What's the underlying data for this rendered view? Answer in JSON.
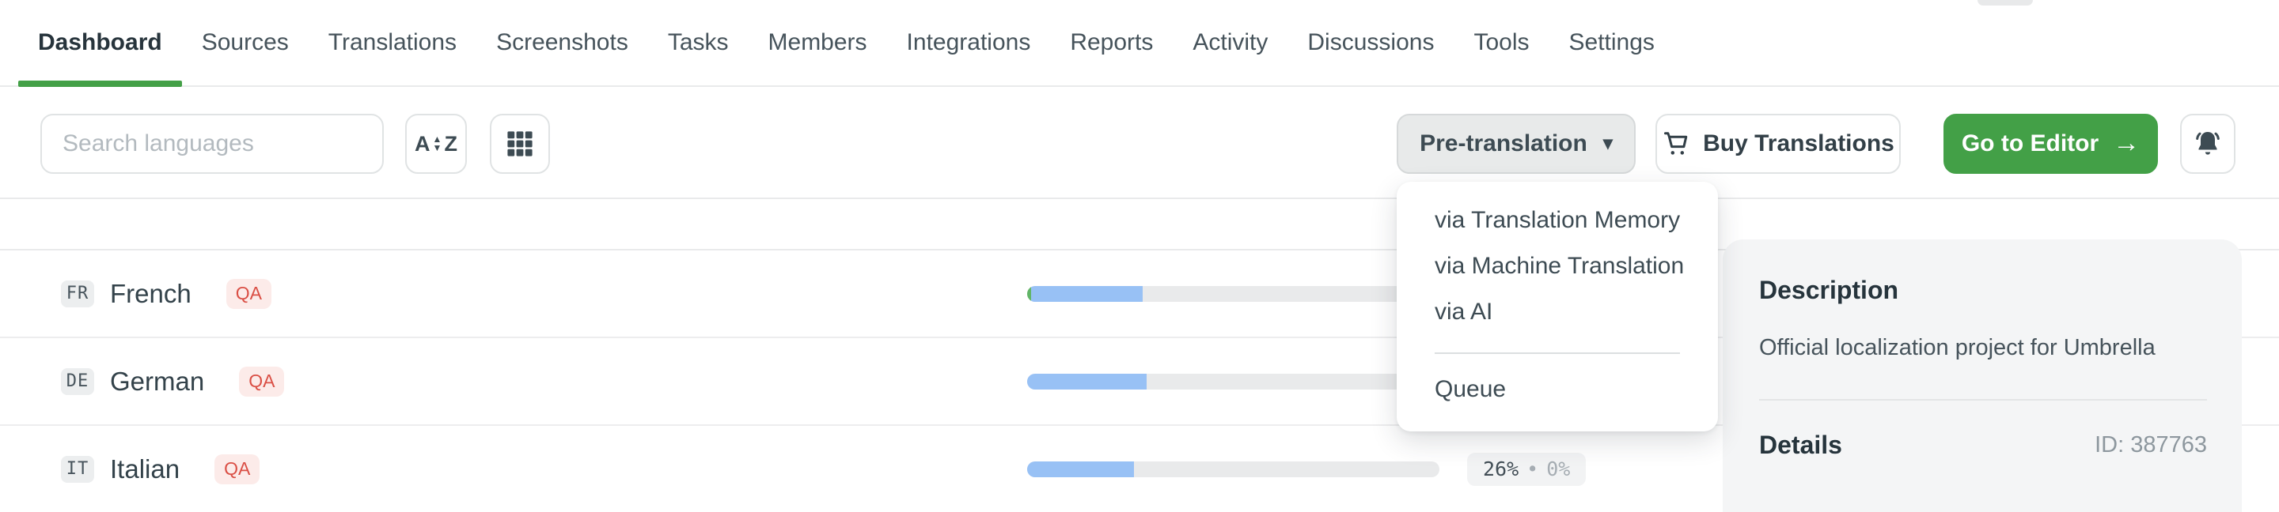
{
  "colors": {
    "accent_green": "#43a047",
    "bar_blue": "#98c1f5",
    "bar_green": "#61b567",
    "qa_red": "#da4f45"
  },
  "nav": {
    "items": [
      {
        "label": "Dashboard",
        "active": true
      },
      {
        "label": "Sources",
        "active": false
      },
      {
        "label": "Translations",
        "active": false
      },
      {
        "label": "Screenshots",
        "active": false
      },
      {
        "label": "Tasks",
        "active": false
      },
      {
        "label": "Members",
        "active": false
      },
      {
        "label": "Integrations",
        "active": false
      },
      {
        "label": "Reports",
        "active": false
      },
      {
        "label": "Activity",
        "active": false
      },
      {
        "label": "Discussions",
        "active": false
      },
      {
        "label": "Tools",
        "active": false
      },
      {
        "label": "Settings",
        "active": false
      }
    ]
  },
  "toolbar": {
    "search_placeholder": "Search languages",
    "sort_letter_a": "A",
    "sort_letter_z": "Z",
    "sort_arrow_up": "▲",
    "sort_arrow_down": "▼",
    "pretranslation_label": "Pre-translation",
    "caret": "▾",
    "buy_label": "Buy Translations",
    "editor_label": "Go to Editor",
    "editor_arrow": "→"
  },
  "dropdown": {
    "items": [
      "via Translation Memory",
      "via Machine Translation",
      "via AI"
    ],
    "footer_item": "Queue"
  },
  "languages": [
    {
      "code": "FR",
      "name": "French",
      "qa": "QA",
      "approved_pct": 1,
      "translated_pct": 27,
      "stats": null
    },
    {
      "code": "DE",
      "name": "German",
      "qa": "QA",
      "approved_pct": 0,
      "translated_pct": 29,
      "stats": null
    },
    {
      "code": "IT",
      "name": "Italian",
      "qa": "QA",
      "approved_pct": 0,
      "translated_pct": 26,
      "stats": {
        "translated": "26%",
        "separator": "•",
        "approved": "0%"
      }
    }
  ],
  "side_panel": {
    "description_title": "Description",
    "description_text": "Official localization project for Umbrella",
    "details_title": "Details",
    "details_id": "ID: 387763"
  }
}
